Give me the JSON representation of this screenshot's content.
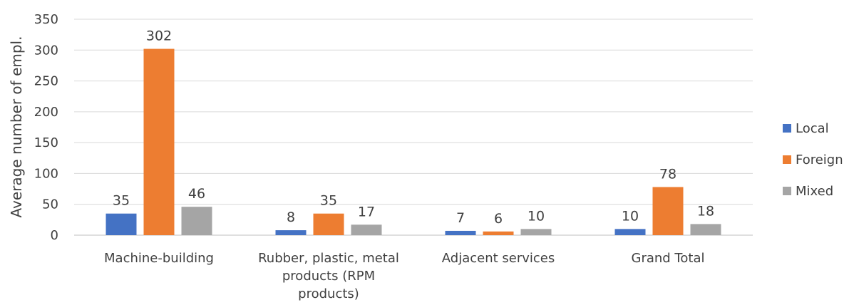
{
  "chart_data": {
    "type": "bar",
    "title": "",
    "xlabel": "",
    "ylabel": "Average number of empl.",
    "ylim": [
      0,
      350
    ],
    "yticks": [
      0,
      50,
      100,
      150,
      200,
      250,
      300,
      350
    ],
    "grid": true,
    "legend_position": "right",
    "categories": [
      [
        "Machine-building"
      ],
      [
        "Rubber, plastic, metal",
        "products (RPM",
        "products)"
      ],
      [
        "Adjacent services"
      ],
      [
        "Grand Total"
      ]
    ],
    "series": [
      {
        "name": "Local",
        "color": "#4472C4",
        "values": [
          35,
          8,
          7,
          10
        ]
      },
      {
        "name": "Foreign",
        "color": "#ED7D31",
        "values": [
          302,
          35,
          6,
          78
        ]
      },
      {
        "name": "Mixed",
        "color": "#A5A5A5",
        "values": [
          46,
          17,
          10,
          18
        ]
      }
    ]
  }
}
